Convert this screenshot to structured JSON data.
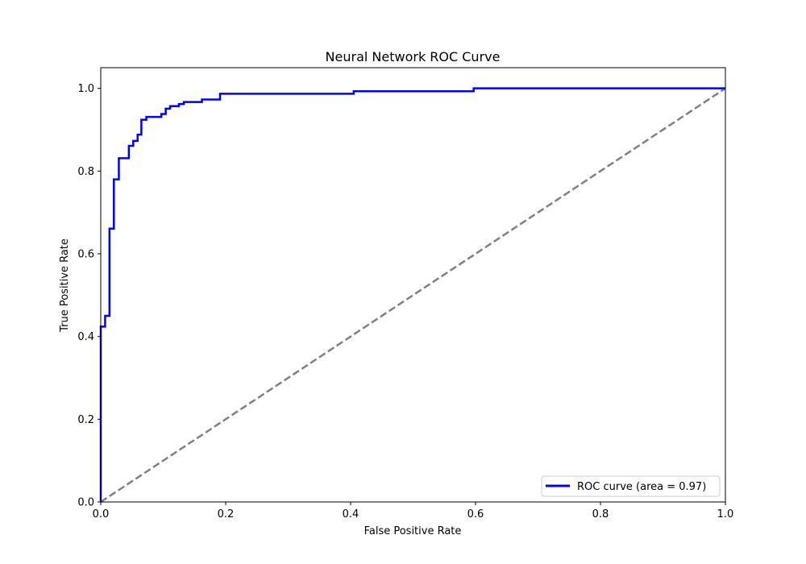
{
  "chart_data": {
    "type": "line",
    "title": "Neural Network ROC Curve",
    "xlabel": "False Positive Rate",
    "ylabel": "True Positive Rate",
    "xlim": [
      0.0,
      1.0
    ],
    "ylim": [
      0.0,
      1.05
    ],
    "x_ticks": [
      "0.0",
      "0.2",
      "0.4",
      "0.6",
      "0.8",
      "1.0"
    ],
    "y_ticks": [
      "0.0",
      "0.2",
      "0.4",
      "0.6",
      "0.8",
      "1.0"
    ],
    "grid": false,
    "legend": {
      "position": "lower-right"
    },
    "series": [
      {
        "name": "ROC curve (area = 0.97)",
        "color": "#0000ff",
        "style": "solid",
        "x": [
          0.0,
          0.0,
          0.007,
          0.007,
          0.014,
          0.014,
          0.021,
          0.021,
          0.029,
          0.029,
          0.045,
          0.045,
          0.052,
          0.052,
          0.059,
          0.059,
          0.065,
          0.065,
          0.073,
          0.073,
          0.097,
          0.097,
          0.104,
          0.104,
          0.111,
          0.111,
          0.125,
          0.125,
          0.133,
          0.133,
          0.162,
          0.162,
          0.191,
          0.191,
          0.405,
          0.405,
          0.597,
          0.597,
          1.0
        ],
        "y": [
          0.0,
          0.424,
          0.424,
          0.45,
          0.45,
          0.661,
          0.661,
          0.78,
          0.78,
          0.831,
          0.831,
          0.861,
          0.861,
          0.873,
          0.873,
          0.888,
          0.888,
          0.924,
          0.924,
          0.931,
          0.931,
          0.938,
          0.938,
          0.951,
          0.951,
          0.957,
          0.957,
          0.962,
          0.962,
          0.967,
          0.967,
          0.973,
          0.973,
          0.987,
          0.987,
          0.993,
          0.993,
          1.0,
          1.0
        ]
      },
      {
        "name": "",
        "color": "#808080",
        "style": "dashed",
        "x": [
          0.0,
          1.0
        ],
        "y": [
          0.0,
          1.0
        ]
      }
    ]
  }
}
